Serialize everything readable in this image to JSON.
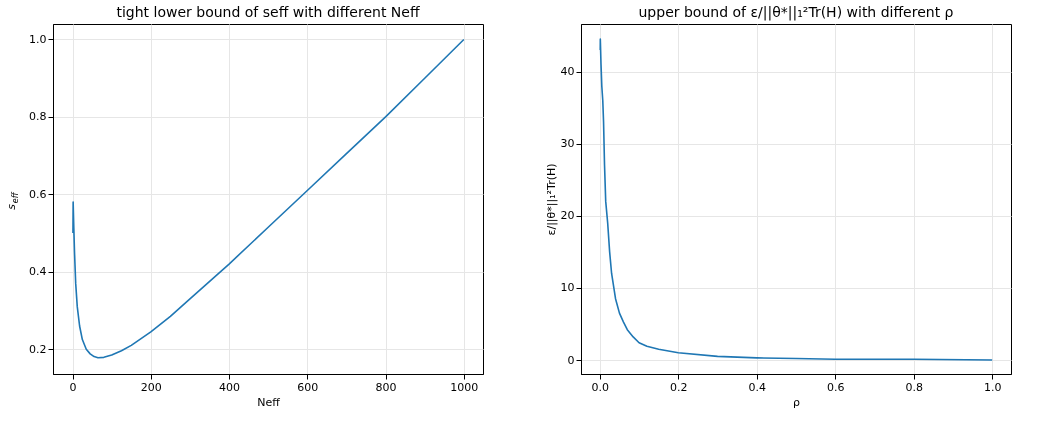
{
  "chart_data": [
    {
      "type": "line",
      "title": "tight lower bound of seff with different Neff",
      "xlabel": "Neff",
      "ylabel": "s$_{eff}$",
      "grid": true,
      "xlim": [
        -50,
        1049
      ],
      "ylim": [
        0.136,
        1.04
      ],
      "xticks": [
        0,
        200,
        400,
        600,
        800,
        1000
      ],
      "yticks": [
        0.2,
        0.4,
        0.6,
        0.8,
        {
          "value": 1,
          "label": "1.0"
        }
      ],
      "series": [
        {
          "color": "#1f77b4",
          "x": [
            1,
            1.5,
            2,
            3,
            5,
            8,
            12,
            18,
            25,
            35,
            45,
            55,
            65,
            80,
            100,
            125,
            150,
            200,
            250,
            300,
            400,
            500,
            600,
            700,
            800,
            900,
            1000
          ],
          "values": [
            0.5,
            0.58,
            0.56,
            0.52,
            0.45,
            0.37,
            0.31,
            0.26,
            0.225,
            0.2,
            0.188,
            0.181,
            0.178,
            0.179,
            0.185,
            0.196,
            0.21,
            0.245,
            0.285,
            0.33,
            0.42,
            0.515,
            0.61,
            0.705,
            0.8,
            0.9,
            1.0
          ]
        }
      ]
    },
    {
      "type": "line",
      "title": "upper bound of ε/||θ*||₁²Tr(H) with different ρ",
      "xlabel": "ρ",
      "ylabel": "ε/||θ*||₁²Tr(H)",
      "grid": true,
      "xlim": [
        -0.048,
        1.048
      ],
      "ylim": [
        -1.94,
        46.6
      ],
      "xticks": [
        {
          "value": 0,
          "label": "0.0"
        },
        0.2,
        0.4,
        0.6,
        0.8,
        {
          "value": 1,
          "label": "1.0"
        }
      ],
      "yticks": [
        0,
        10,
        20,
        30,
        40
      ],
      "series": [
        {
          "color": "#1f77b4",
          "x": [
            0.001,
            0.0012,
            0.0015,
            0.003,
            0.005,
            0.0075,
            0.0095,
            0.012,
            0.015,
            0.02,
            0.025,
            0.03,
            0.04,
            0.05,
            0.06,
            0.07,
            0.085,
            0.1,
            0.12,
            0.15,
            0.2,
            0.3,
            0.4,
            0.5,
            0.6,
            0.8,
            1.0
          ],
          "values": [
            43,
            44.5,
            44,
            41,
            38,
            36,
            33,
            27,
            22,
            19,
            15,
            12,
            8.5,
            6.5,
            5.3,
            4.2,
            3.2,
            2.4,
            1.9,
            1.5,
            1.0,
            0.5,
            0.3,
            0.2,
            0.1,
            0.1,
            0.0
          ]
        }
      ]
    }
  ]
}
